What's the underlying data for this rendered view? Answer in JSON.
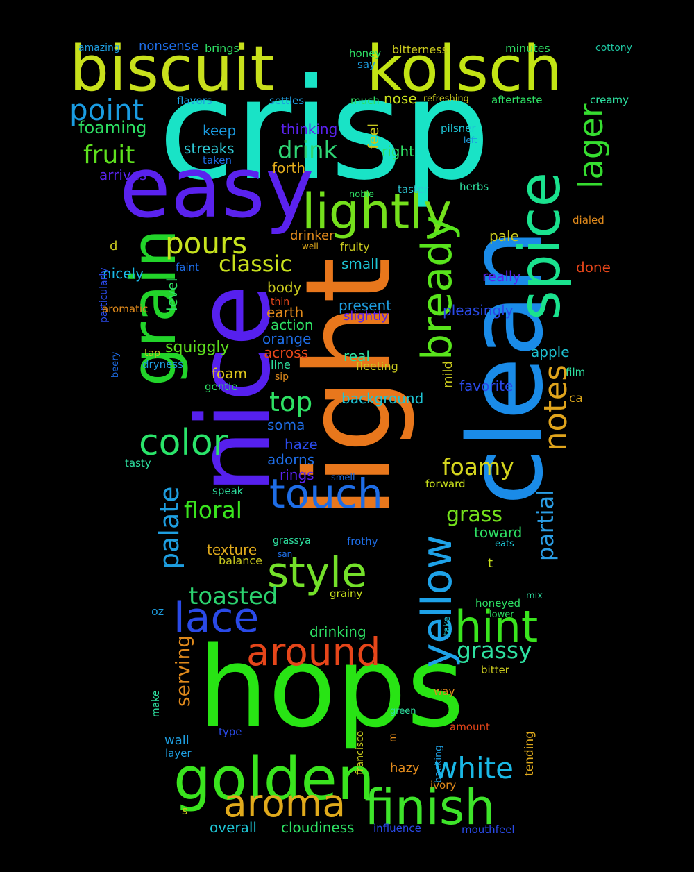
{
  "words": [
    {
      "text": "crisp",
      "color": "#19e3c6"
    },
    {
      "text": "light",
      "color": "#e8771c"
    },
    {
      "text": "hops",
      "color": "#28e414"
    },
    {
      "text": "clean",
      "color": "#1a8be8"
    },
    {
      "text": "nice",
      "color": "#5620ee"
    },
    {
      "text": "biscuit",
      "color": "#c8e01c"
    },
    {
      "text": "kolsch",
      "color": "#c2e414"
    },
    {
      "text": "easy",
      "color": "#5a22ee"
    },
    {
      "text": "grain",
      "color": "#22d42a"
    },
    {
      "text": "golden",
      "color": "#3ae41e"
    },
    {
      "text": "finish",
      "color": "#3ee42a"
    },
    {
      "text": "lightly",
      "color": "#74e01c"
    },
    {
      "text": "spice",
      "color": "#1ae28e"
    },
    {
      "text": "bready",
      "color": "#58e41c"
    },
    {
      "text": "yellow",
      "color": "#1ea2e8"
    },
    {
      "text": "style",
      "color": "#74e02a"
    },
    {
      "text": "touch",
      "color": "#1e6de6"
    },
    {
      "text": "around",
      "color": "#e6461a"
    },
    {
      "text": "aroma",
      "color": "#e0aa1c"
    },
    {
      "text": "lace",
      "color": "#2a4ae8"
    },
    {
      "text": "hint",
      "color": "#3ae41e"
    },
    {
      "text": "color",
      "color": "#2ae46a"
    },
    {
      "text": "notes",
      "color": "#e0a41c"
    },
    {
      "text": "lager",
      "color": "#36dd30"
    },
    {
      "text": "white",
      "color": "#1ab8e6"
    },
    {
      "text": "pours",
      "color": "#c6e21e"
    },
    {
      "text": "point",
      "color": "#1a9ce2"
    },
    {
      "text": "palate",
      "color": "#1e9ee0"
    },
    {
      "text": "partial",
      "color": "#2a9ee6"
    },
    {
      "text": "fruit",
      "color": "#5ee01e"
    },
    {
      "text": "drink",
      "color": "#2ed474"
    },
    {
      "text": "classic",
      "color": "#c8e01c"
    },
    {
      "text": "toasted",
      "color": "#2cd470"
    },
    {
      "text": "top",
      "color": "#2ee064"
    },
    {
      "text": "foamy",
      "color": "#d4d41e"
    },
    {
      "text": "floral",
      "color": "#3ae41e"
    },
    {
      "text": "grassy",
      "color": "#2ee0a0"
    },
    {
      "text": "grass",
      "color": "#74e01c"
    },
    {
      "text": "serving",
      "color": "#e08a1c"
    },
    {
      "text": "foaming",
      "color": "#2ee064"
    },
    {
      "text": "squiggly",
      "color": "#5ee01e"
    },
    {
      "text": "overall",
      "color": "#1ec4d4"
    },
    {
      "text": "cloudiness",
      "color": "#2ee064"
    },
    {
      "text": "streaks",
      "color": "#2ec8d4"
    },
    {
      "text": "keep",
      "color": "#1a9ce2"
    },
    {
      "text": "thinking",
      "color": "#5a22ee"
    },
    {
      "text": "feel",
      "color": "#c8c81e"
    },
    {
      "text": "nose",
      "color": "#c8e01c"
    },
    {
      "text": "right",
      "color": "#2ee064"
    },
    {
      "text": "forth",
      "color": "#e0aa1c"
    },
    {
      "text": "arrives",
      "color": "#5a22ee"
    },
    {
      "text": "nicely",
      "color": "#1ab8e6"
    },
    {
      "text": "level",
      "color": "#2ee064"
    },
    {
      "text": "body",
      "color": "#c8c81e"
    },
    {
      "text": "present",
      "color": "#1e9ee0"
    },
    {
      "text": "earth",
      "color": "#e08a1c"
    },
    {
      "text": "action",
      "color": "#2ee064"
    },
    {
      "text": "orange",
      "color": "#1e6de6"
    },
    {
      "text": "across",
      "color": "#e6461a"
    },
    {
      "text": "slightly",
      "color": "#5a22ee"
    },
    {
      "text": "pleasingly",
      "color": "#2a4ae8"
    },
    {
      "text": "really",
      "color": "#5a22ee"
    },
    {
      "text": "small",
      "color": "#1ec4d4"
    },
    {
      "text": "real",
      "color": "#2ee0a0"
    },
    {
      "text": "fleeting",
      "color": "#c8c81e"
    },
    {
      "text": "background",
      "color": "#1ec4d4"
    },
    {
      "text": "mild",
      "color": "#c8c81e"
    },
    {
      "text": "favorite",
      "color": "#2a4ae8"
    },
    {
      "text": "foam",
      "color": "#e0c81c"
    },
    {
      "text": "soma",
      "color": "#1e6de6"
    },
    {
      "text": "haze",
      "color": "#2a4ae8"
    },
    {
      "text": "adorns",
      "color": "#1e6de6"
    },
    {
      "text": "rings",
      "color": "#5a22ee"
    },
    {
      "text": "texture",
      "color": "#e0aa1c"
    },
    {
      "text": "balance",
      "color": "#c8c81e"
    },
    {
      "text": "toward",
      "color": "#2ee064"
    },
    {
      "text": "drinking",
      "color": "#2ee064"
    },
    {
      "text": "drinker",
      "color": "#e08a1c"
    },
    {
      "text": "pale",
      "color": "#c8c81e"
    },
    {
      "text": "fruity",
      "color": "#c8c81e"
    },
    {
      "text": "apple",
      "color": "#1ec4d4"
    },
    {
      "text": "done",
      "color": "#e6461a"
    },
    {
      "text": "amazing",
      "color": "#1e9ee0"
    },
    {
      "text": "nonsense",
      "color": "#1e6de6"
    },
    {
      "text": "brings",
      "color": "#2ee064"
    },
    {
      "text": "honey",
      "color": "#2ee064"
    },
    {
      "text": "bitterness",
      "color": "#c8c81e"
    },
    {
      "text": "minutes",
      "color": "#2ee064"
    },
    {
      "text": "cottony",
      "color": "#1ec4a0"
    },
    {
      "text": "say",
      "color": "#1e9ee0"
    },
    {
      "text": "flavors",
      "color": "#1e9ee0"
    },
    {
      "text": "settles",
      "color": "#1e9ee0"
    },
    {
      "text": "much",
      "color": "#2ee064"
    },
    {
      "text": "refreshing",
      "color": "#c8c81e"
    },
    {
      "text": "aftertaste",
      "color": "#2ee064"
    },
    {
      "text": "creamy",
      "color": "#2ee0a0"
    },
    {
      "text": "pilsner",
      "color": "#1ec4d4"
    },
    {
      "text": "left",
      "color": "#1e9ee0"
    },
    {
      "text": "taken",
      "color": "#1e6de6"
    },
    {
      "text": "noble",
      "color": "#2ee064"
    },
    {
      "text": "taster",
      "color": "#2ec8d4"
    },
    {
      "text": "herbs",
      "color": "#2ee0a0"
    },
    {
      "text": "dialed",
      "color": "#e08a1c"
    },
    {
      "text": "particularly",
      "color": "#2a4ae8"
    },
    {
      "text": "d",
      "color": "#c8c81e"
    },
    {
      "text": "well",
      "color": "#e0aa1c"
    },
    {
      "text": "faint",
      "color": "#1e6de6"
    },
    {
      "text": "aromatic",
      "color": "#e08a1c"
    },
    {
      "text": "thin",
      "color": "#e6461a"
    },
    {
      "text": "beery",
      "color": "#1e6de6"
    },
    {
      "text": "tap",
      "color": "#c8c81e"
    },
    {
      "text": "dryness",
      "color": "#1e9ee0"
    },
    {
      "text": "line",
      "color": "#2ee0a0"
    },
    {
      "text": "sip",
      "color": "#e08a1c"
    },
    {
      "text": "gentle",
      "color": "#2ee064"
    },
    {
      "text": "film",
      "color": "#2ee0a0"
    },
    {
      "text": "ca",
      "color": "#e0aa1c"
    },
    {
      "text": "tasty",
      "color": "#2ee0a0"
    },
    {
      "text": "smell",
      "color": "#1e6de6"
    },
    {
      "text": "speak",
      "color": "#2ee0a0"
    },
    {
      "text": "forward",
      "color": "#c8e01c"
    },
    {
      "text": "grassya",
      "color": "#2ee0a0"
    },
    {
      "text": "frothy",
      "color": "#1e6de6"
    },
    {
      "text": "san",
      "color": "#1e6de6"
    },
    {
      "text": "eats",
      "color": "#1ec4d4"
    },
    {
      "text": "t",
      "color": "#c8e01c"
    },
    {
      "text": "grainy",
      "color": "#c8e01c"
    },
    {
      "text": "oz",
      "color": "#1e9ee0"
    },
    {
      "text": "take",
      "color": "#1ec4d4"
    },
    {
      "text": "honeyed",
      "color": "#2ee064"
    },
    {
      "text": "mix",
      "color": "#2ee0a0"
    },
    {
      "text": "lower",
      "color": "#2ee064"
    },
    {
      "text": "make",
      "color": "#2ee0a0"
    },
    {
      "text": "bitter",
      "color": "#c8c81e"
    },
    {
      "text": "tending",
      "color": "#e0aa1c"
    },
    {
      "text": "way",
      "color": "#e08a1c"
    },
    {
      "text": "francisco",
      "color": "#c8c81e"
    },
    {
      "text": "green",
      "color": "#2ee0a0"
    },
    {
      "text": "m",
      "color": "#e08a1c"
    },
    {
      "text": "backing",
      "color": "#1e9ee0"
    },
    {
      "text": "amount",
      "color": "#e6461a"
    },
    {
      "text": "wall",
      "color": "#1e9ee0"
    },
    {
      "text": "type",
      "color": "#2a4ae8"
    },
    {
      "text": "layer",
      "color": "#1e9ee0"
    },
    {
      "text": "hazy",
      "color": "#e08a1c"
    },
    {
      "text": "ivory",
      "color": "#e08a1c"
    },
    {
      "text": "s",
      "color": "#c8c81e"
    },
    {
      "text": "influence",
      "color": "#2a4ae8"
    },
    {
      "text": "mouthfeel",
      "color": "#2a4ae8"
    }
  ]
}
